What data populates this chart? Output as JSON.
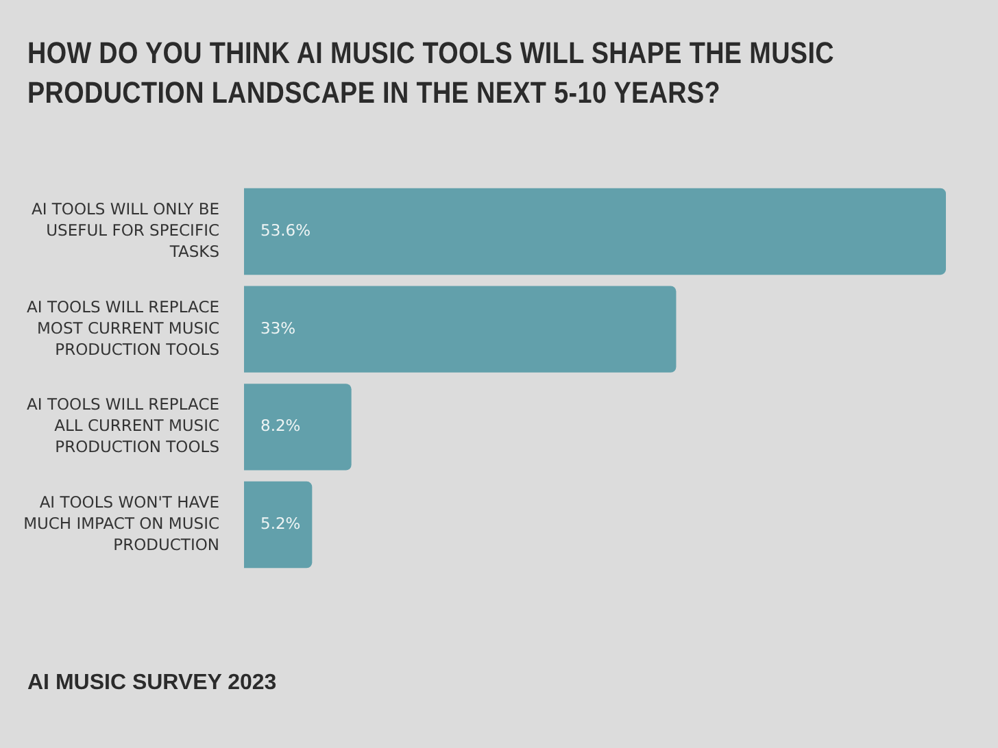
{
  "chart_data": {
    "type": "bar",
    "orientation": "horizontal",
    "title": "HOW DO YOU THINK AI MUSIC TOOLS WILL SHAPE THE MUSIC PRODUCTION LANDSCAPE IN THE NEXT 5-10 YEARS?",
    "categories": [
      "AI TOOLS WILL ONLY BE USEFUL FOR SPECIFIC TASKS",
      "AI TOOLS WILL REPLACE MOST CURRENT MUSIC PRODUCTION TOOLS",
      "AI TOOLS WILL REPLACE ALL CURRENT MUSIC PRODUCTION TOOLS",
      "AI TOOLS WON'T HAVE MUCH IMPACT ON MUSIC PRODUCTION"
    ],
    "values": [
      53.6,
      33,
      8.2,
      5.2
    ],
    "value_labels": [
      "53.6%",
      "33%",
      "8.2%",
      "5.2%"
    ],
    "color": "#62a0ab",
    "tick_labels": "y",
    "annotations": [
      "AI MUSIC SURVEY 2023"
    ]
  }
}
